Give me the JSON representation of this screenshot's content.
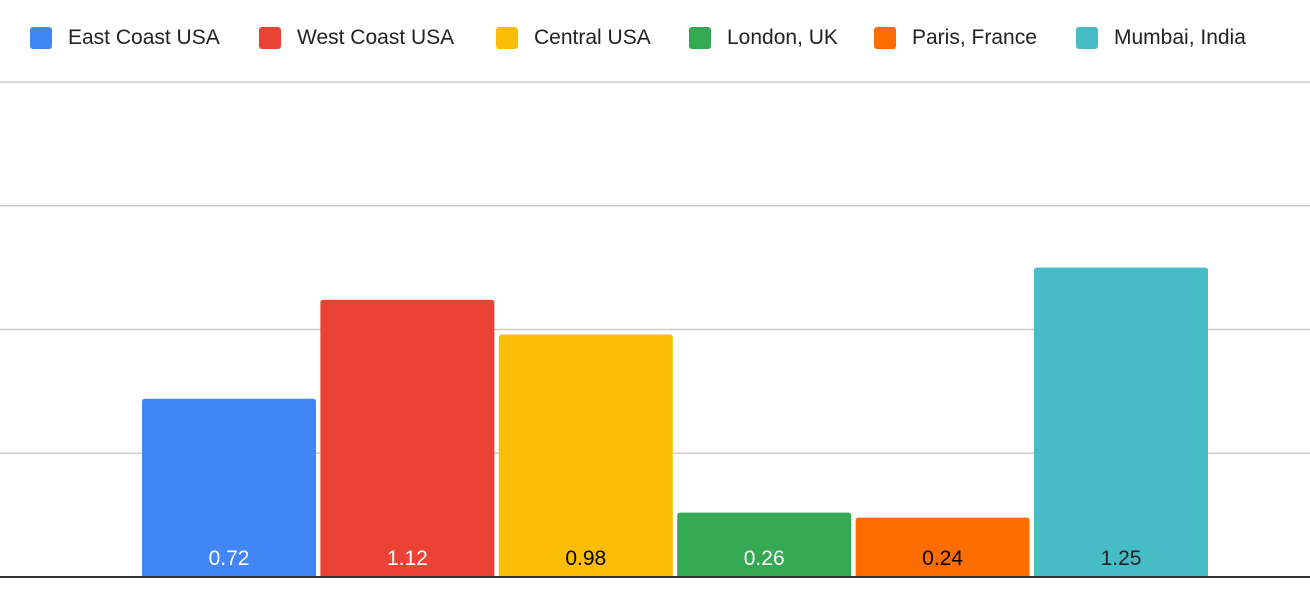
{
  "chart_data": {
    "type": "bar",
    "categories": [
      "East Coast USA",
      "West Coast USA",
      "Central USA",
      "London, UK",
      "Paris, France",
      "Mumbai, India"
    ],
    "values": [
      0.72,
      1.12,
      0.98,
      0.26,
      0.24,
      1.25
    ],
    "value_labels": [
      "0.72",
      "1.12",
      "0.98",
      "0.26",
      "0.24",
      "1.25"
    ],
    "colors": [
      "#4285F4",
      "#EA4335",
      "#FBBC04",
      "#34A853",
      "#FF6D01",
      "#46BDC6"
    ],
    "label_colors": [
      "#ffffff",
      "#ffffff",
      "#000000",
      "#ffffff",
      "#000000",
      "#222222"
    ],
    "ylim": [
      0,
      2
    ],
    "gridlines": [
      0.5,
      1.0,
      1.5,
      2.0
    ],
    "grid": true,
    "legend_position": "top",
    "legend": [
      "East Coast USA",
      "West Coast USA",
      "Central USA",
      "London, UK",
      "Paris, France",
      "Mumbai, India"
    ]
  }
}
